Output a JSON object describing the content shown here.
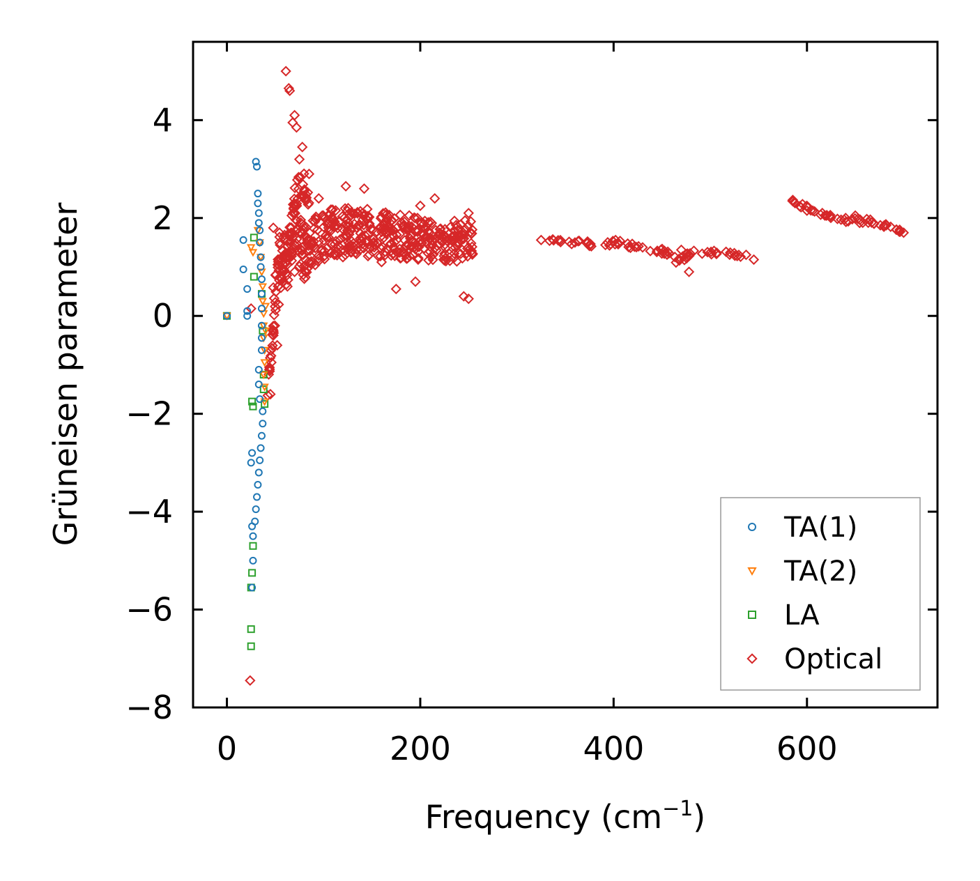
{
  "chart_data": {
    "type": "scatter",
    "title": "",
    "xlabel": "Frequency (cm",
    "xlabel_sup": "−1",
    "xlabel_close": ")",
    "ylabel": "Grüneisen parameter",
    "xlim": [
      -35,
      735
    ],
    "ylim": [
      -8,
      5.6
    ],
    "x_ticks": [
      0,
      200,
      400,
      600
    ],
    "x_tick_labels": [
      "0",
      "200",
      "400",
      "600"
    ],
    "y_ticks": [
      4,
      2,
      0,
      -2,
      -4,
      -6,
      -8
    ],
    "y_tick_labels": [
      "4",
      "2",
      "0",
      "−2",
      "−4",
      "−6",
      "−8"
    ],
    "grid": false,
    "legend_position": "lower-right",
    "series": [
      {
        "name": "TA(1)",
        "marker": "circle",
        "color": "#1f77b4",
        "points": [
          [
            0,
            0
          ],
          [
            17,
            1.55
          ],
          [
            17,
            0.95
          ],
          [
            21,
            0.55
          ],
          [
            21,
            0.1
          ],
          [
            21,
            0
          ],
          [
            30,
            3.15
          ],
          [
            31,
            3.05
          ],
          [
            32,
            2.5
          ],
          [
            32,
            2.3
          ],
          [
            33,
            2.1
          ],
          [
            33,
            1.9
          ],
          [
            34,
            1.75
          ],
          [
            34,
            1.5
          ],
          [
            35,
            1.2
          ],
          [
            35,
            1.0
          ],
          [
            36,
            0.75
          ],
          [
            36,
            0.45
          ],
          [
            36,
            0.15
          ],
          [
            36,
            -0.2
          ],
          [
            36,
            -0.45
          ],
          [
            36,
            -0.7
          ],
          [
            33,
            -1.1
          ],
          [
            33,
            -1.4
          ],
          [
            34,
            -1.7
          ],
          [
            37,
            -1.95
          ],
          [
            37,
            -2.2
          ],
          [
            36,
            -2.45
          ],
          [
            35,
            -2.7
          ],
          [
            34,
            -2.95
          ],
          [
            26,
            -2.8
          ],
          [
            25,
            -3.0
          ],
          [
            33,
            -3.2
          ],
          [
            32,
            -3.45
          ],
          [
            31,
            -3.7
          ],
          [
            30,
            -3.95
          ],
          [
            29,
            -4.2
          ],
          [
            26,
            -4.3
          ],
          [
            27,
            -4.5
          ],
          [
            27,
            -5.0
          ],
          [
            26,
            -5.55
          ]
        ]
      },
      {
        "name": "TA(2)",
        "marker": "triangle",
        "color": "#ff7f0e",
        "points": [
          [
            0,
            0
          ],
          [
            25,
            1.4
          ],
          [
            27,
            1.3
          ],
          [
            32,
            1.75
          ],
          [
            34,
            1.5
          ],
          [
            35,
            1.2
          ],
          [
            36,
            0.9
          ],
          [
            37,
            0.6
          ],
          [
            37,
            0.3
          ],
          [
            38,
            0.05
          ],
          [
            38,
            -0.2
          ],
          [
            38,
            -0.45
          ],
          [
            39,
            -0.7
          ],
          [
            39,
            -0.95
          ],
          [
            38,
            -1.2
          ],
          [
            39,
            -1.45
          ],
          [
            39,
            -1.75
          ],
          [
            40,
            -0.3
          ],
          [
            40,
            0.2
          ]
        ]
      },
      {
        "name": "LA",
        "marker": "square",
        "color": "#2ca02c",
        "points": [
          [
            0,
            0
          ],
          [
            28,
            1.6
          ],
          [
            28,
            0.8
          ],
          [
            36,
            0.45
          ],
          [
            37,
            -0.3
          ],
          [
            38,
            -1.2
          ],
          [
            38,
            -1.5
          ],
          [
            39,
            -1.8
          ],
          [
            26,
            -1.75
          ],
          [
            27,
            -1.85
          ],
          [
            27,
            -4.7
          ],
          [
            26,
            -5.25
          ],
          [
            25,
            -5.55
          ],
          [
            25,
            -6.4
          ],
          [
            25,
            -6.75
          ]
        ]
      },
      {
        "name": "Optical",
        "marker": "diamond",
        "color": "#d62728",
        "points": [
          [
            24,
            -7.45
          ],
          [
            25,
            0.15
          ],
          [
            61,
            5.0
          ],
          [
            64,
            4.65
          ],
          [
            65,
            4.6
          ],
          [
            70,
            4.1
          ],
          [
            68,
            3.95
          ],
          [
            72,
            3.85
          ],
          [
            78,
            3.45
          ],
          [
            75,
            3.2
          ],
          [
            85,
            2.9
          ],
          [
            95,
            2.4
          ],
          [
            123,
            2.65
          ],
          [
            142,
            2.6
          ],
          [
            200,
            2.25
          ],
          [
            215,
            2.4
          ],
          [
            250,
            2.1
          ],
          [
            48,
            1.8
          ],
          [
            55,
            1.45
          ],
          [
            70,
            0.9
          ],
          [
            46,
            -0.95
          ],
          [
            52,
            -0.6
          ],
          [
            45,
            -1.6
          ],
          [
            120,
            1.2
          ],
          [
            160,
            1.1
          ],
          [
            175,
            0.55
          ],
          [
            195,
            0.7
          ],
          [
            245,
            0.4
          ],
          [
            250,
            0.35
          ],
          [
            325,
            1.55
          ],
          [
            360,
            1.5
          ],
          [
            402,
            1.55
          ],
          [
            430,
            1.4
          ],
          [
            470,
            1.35
          ],
          [
            478,
            0.9
          ],
          [
            520,
            1.25
          ],
          [
            545,
            1.15
          ],
          [
            585,
            2.35
          ],
          [
            600,
            2.15
          ],
          [
            620,
            2.05
          ],
          [
            650,
            2.05
          ],
          [
            680,
            1.85
          ],
          [
            700,
            1.7
          ]
        ]
      }
    ],
    "optical_bands": [
      {
        "points": [
          [
            48,
            0.2
          ],
          [
            55,
            1.4
          ],
          [
            62,
            1.1
          ],
          [
            70,
            1.8
          ],
          [
            80,
            1.3
          ],
          [
            95,
            1.6
          ],
          [
            110,
            1.7
          ],
          [
            130,
            1.75
          ],
          [
            150,
            1.7
          ],
          [
            170,
            1.65
          ],
          [
            190,
            1.6
          ],
          [
            210,
            1.55
          ],
          [
            225,
            1.5
          ],
          [
            240,
            1.55
          ],
          [
            255,
            1.6
          ]
        ],
        "spread": [
          0.9,
          1.0,
          1.1,
          1.2,
          1.1,
          1.0,
          1.0,
          1.0,
          1.0,
          0.9,
          0.9,
          0.85,
          0.8,
          0.9,
          0.7
        ]
      },
      {
        "points": [
          [
            42,
            -1.6
          ],
          [
            45,
            -0.9
          ],
          [
            48,
            -0.3
          ],
          [
            52,
            0.3
          ],
          [
            58,
            0.9
          ],
          [
            65,
            1.4
          ],
          [
            70,
            2.3
          ],
          [
            75,
            2.9
          ],
          [
            80,
            2.6
          ],
          [
            85,
            2.2
          ]
        ],
        "spread": [
          0.2,
          0.3,
          0.4,
          0.5,
          0.5,
          0.6,
          0.7,
          0.7,
          0.6,
          0.6
        ]
      },
      {
        "points": [
          [
            330,
            1.55
          ],
          [
            360,
            1.5
          ],
          [
            390,
            1.45
          ],
          [
            405,
            1.5
          ],
          [
            430,
            1.35
          ],
          [
            455,
            1.3
          ],
          [
            470,
            1.1
          ],
          [
            480,
            1.3
          ],
          [
            510,
            1.3
          ],
          [
            540,
            1.2
          ]
        ],
        "spread": [
          0.08,
          0.1,
          0.1,
          0.12,
          0.12,
          0.12,
          0.2,
          0.1,
          0.1,
          0.08
        ]
      },
      {
        "points": [
          [
            585,
            2.35
          ],
          [
            600,
            2.2
          ],
          [
            620,
            2.05
          ],
          [
            640,
            1.95
          ],
          [
            660,
            1.95
          ],
          [
            680,
            1.85
          ],
          [
            700,
            1.7
          ]
        ],
        "spread": [
          0.06,
          0.1,
          0.1,
          0.1,
          0.1,
          0.08,
          0.06
        ]
      }
    ]
  }
}
